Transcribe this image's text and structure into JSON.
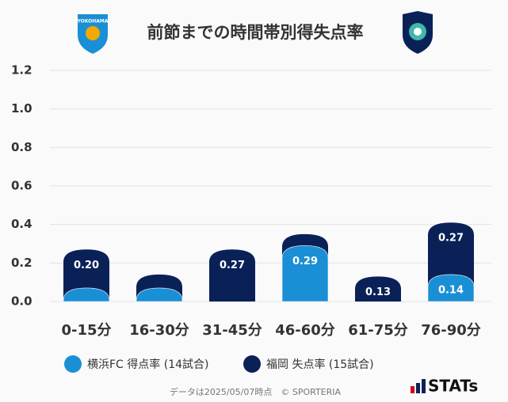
{
  "chart_data": {
    "type": "bar",
    "title": "前節までの時間帯別得失点率",
    "categories": [
      "0-15分",
      "16-30分",
      "31-45分",
      "46-60分",
      "61-75分",
      "76-90分"
    ],
    "series": [
      {
        "name": "横浜FC 得点率 (14試合)",
        "color": "#1a8fd6",
        "values": [
          0.07,
          0.07,
          0,
          0.29,
          0,
          0.14
        ],
        "value_labels": [
          null,
          null,
          null,
          "0.29",
          null,
          "0.14"
        ]
      },
      {
        "name": "福岡 失点率 (15試合)",
        "color": "#0a2158",
        "values": [
          0.2,
          0.07,
          0.27,
          0.06,
          0.13,
          0.27
        ],
        "value_labels": [
          "0.20",
          null,
          "0.27",
          null,
          "0.13",
          "0.27"
        ]
      }
    ],
    "stacked": true,
    "ylim": [
      0,
      1.2
    ],
    "yticks": [
      {
        "value": 0,
        "label": "0.0"
      },
      0.2,
      0.4,
      0.6,
      0.8,
      {
        "value": 1,
        "label": "1.0"
      },
      1.2
    ],
    "grid": true,
    "source": "データは2025/05/07時点　© SPORTERIA",
    "brand": "STATs"
  }
}
